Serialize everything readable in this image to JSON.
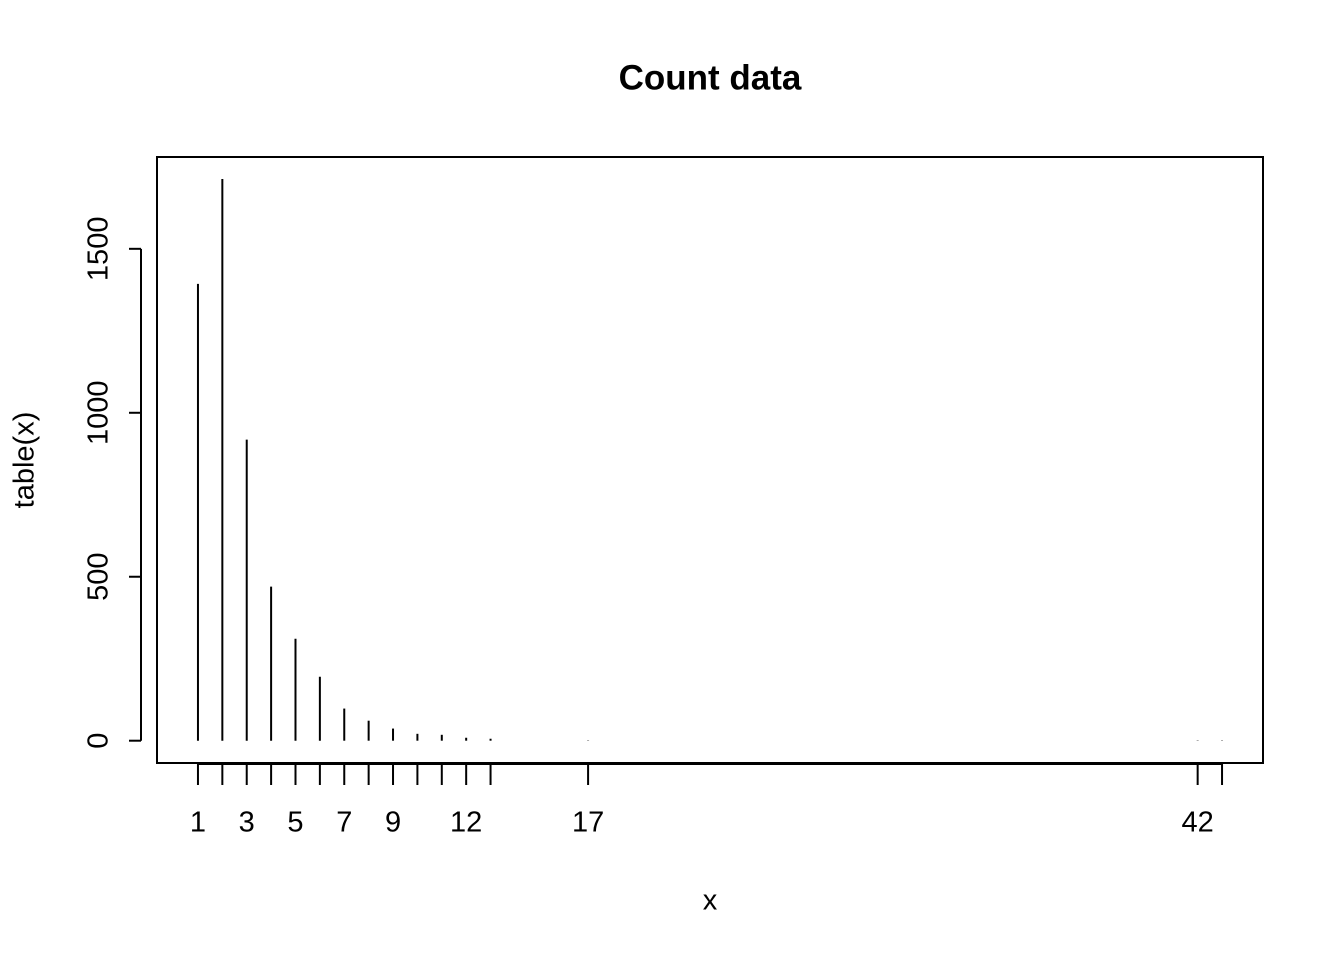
{
  "chart_data": {
    "type": "histogram-lines",
    "title": "Count data",
    "x_label": "x",
    "y_label": "table(x)",
    "x": [
      1,
      2,
      3,
      4,
      5,
      6,
      7,
      8,
      9,
      10,
      11,
      12,
      13,
      17,
      42,
      43
    ],
    "values": [
      1393,
      1713,
      918,
      470,
      311,
      195,
      98,
      61,
      37,
      21,
      18,
      9,
      6,
      1,
      1,
      1
    ],
    "color": "#000000",
    "xlim": [
      -0.68,
      44.68
    ],
    "xticks": [
      1,
      {
        "value": 2,
        "label": null
      },
      3,
      {
        "value": 4,
        "label": null
      },
      5,
      {
        "value": 6,
        "label": null
      },
      7,
      {
        "value": 8,
        "label": null
      },
      9,
      {
        "value": 10,
        "label": null
      },
      {
        "value": 11,
        "label": null
      },
      12,
      {
        "value": 13,
        "label": null
      },
      17,
      42,
      {
        "value": 43,
        "label": null
      }
    ],
    "ylim": [
      -68,
      1780
    ],
    "yticks": [
      0,
      500,
      1000,
      1500
    ]
  }
}
